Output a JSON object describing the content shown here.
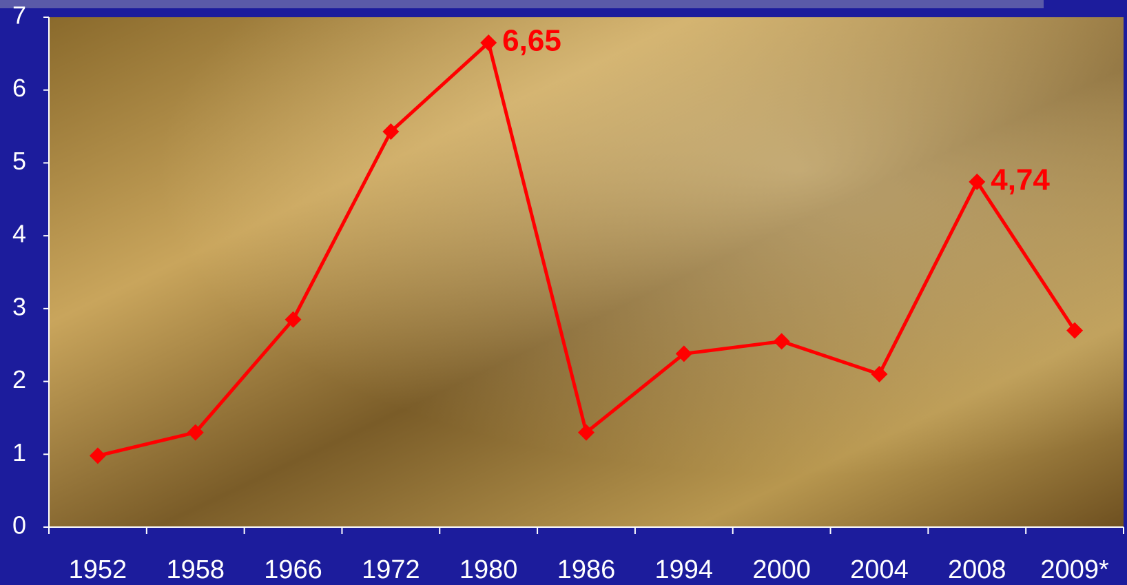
{
  "chart_data": {
    "type": "line",
    "categories": [
      "1952",
      "1958",
      "1966",
      "1972",
      "1980",
      "1986",
      "1994",
      "2000",
      "2004",
      "2008",
      "2009*"
    ],
    "values": [
      0.98,
      1.3,
      2.85,
      5.43,
      6.65,
      1.3,
      2.38,
      2.55,
      2.1,
      4.74,
      2.7
    ],
    "value_labels": [
      null,
      null,
      null,
      null,
      "6,65",
      null,
      null,
      null,
      null,
      "4,74",
      null
    ],
    "color": "#ff0000",
    "ylim": [
      0,
      7
    ],
    "yticks": [
      0,
      1,
      2,
      3,
      4,
      5,
      6,
      7
    ]
  }
}
